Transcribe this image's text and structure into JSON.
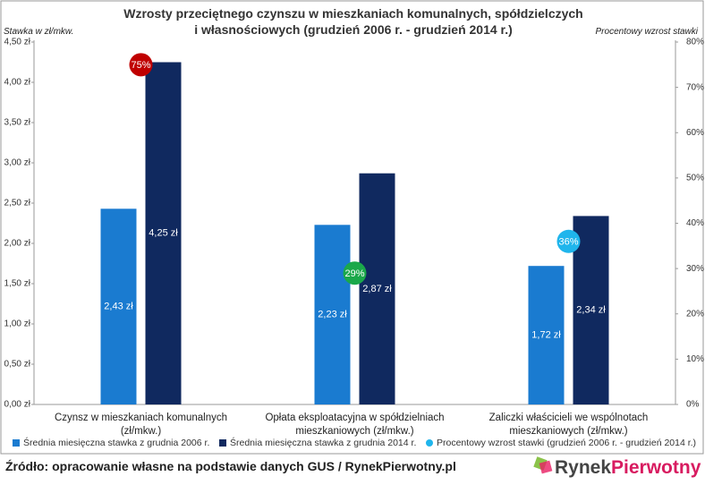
{
  "chart_data": {
    "type": "bar",
    "title": "Wzrosty przeciętnego czynszu w mieszkaniach komunalnych, spółdzielczych\ni własnościowych (grudzień 2006 r. - grudzień 2014 r.)",
    "y_label": "Stawka w zł/mkw.",
    "y2_label": "Procentowy wzrost stawki",
    "categories": [
      "Czynsz w mieszkaniach komunalnych (zł/mkw.)",
      "Opłata eksploatacyjna w spółdzielniach\nmieszkaniowych (zł/mkw.)",
      "Zaliczki właścicieli we wspólnotach\nmieszkaniowych (zł/mkw.)"
    ],
    "series": [
      {
        "name": "Średnia miesięczna stawka z grudnia 2006 r.",
        "color": "#1a7bd0",
        "values": [
          2.43,
          2.23,
          1.72
        ],
        "value_labels": [
          "2,43 zł",
          "2,23 zł",
          "1,72 zł"
        ]
      },
      {
        "name": "Średnia miesięczna stawka z grudnia 2014 r.",
        "color": "#10295f",
        "values": [
          4.25,
          2.87,
          2.34
        ],
        "value_labels": [
          "4,25 zł",
          "2,87 zł",
          "2,34 zł"
        ]
      },
      {
        "name": "Procentowy wzrost stawki (grudzień 2006 r. - grudzień 2014 r.)",
        "type": "scatter",
        "axis": "y2",
        "color": "#1fb5ec",
        "point_colors": [
          "#c00000",
          "#1aa84a",
          "#1fb5ec"
        ],
        "values": [
          75,
          29,
          36
        ],
        "value_labels": [
          "75%",
          "29%",
          "36%"
        ]
      }
    ],
    "ylim": [
      0,
      4.5
    ],
    "yticks": [
      {
        "value": 0,
        "label": "0,00 zł"
      },
      {
        "value": 0.5,
        "label": "0,50 zł"
      },
      {
        "value": 1,
        "label": "1,00 zł"
      },
      {
        "value": 1.5,
        "label": "1,50 zł"
      },
      {
        "value": 2,
        "label": "2,00 zł"
      },
      {
        "value": 2.5,
        "label": "2,50 zł"
      },
      {
        "value": 3,
        "label": "3,00 zł"
      },
      {
        "value": 3.5,
        "label": "3,50 zł"
      },
      {
        "value": 4,
        "label": "4,00 zł"
      },
      {
        "value": 4.5,
        "label": "4,50 zł"
      }
    ],
    "y2lim": [
      0,
      80
    ],
    "y2ticks": [
      {
        "value": 0,
        "label": "0%"
      },
      {
        "value": 10,
        "label": "10%"
      },
      {
        "value": 20,
        "label": "20%"
      },
      {
        "value": 30,
        "label": "30%"
      },
      {
        "value": 40,
        "label": "40%"
      },
      {
        "value": 50,
        "label": "50%"
      },
      {
        "value": 60,
        "label": "60%"
      },
      {
        "value": 70,
        "label": "70%"
      },
      {
        "value": 80,
        "label": "80%"
      }
    ],
    "grid": false,
    "legend": "bottom",
    "source": "Źródło: opracowanie własne na podstawie danych GUS / RynekPierwotny.pl",
    "logo": [
      "Rynek",
      "Pierwotny"
    ]
  }
}
